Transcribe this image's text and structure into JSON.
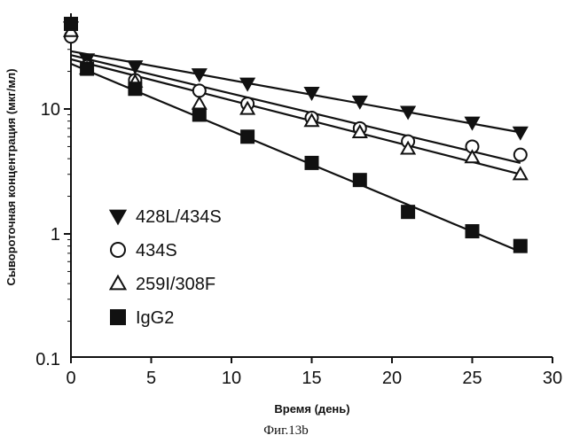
{
  "caption": "Фиг.13b",
  "chart_data": {
    "type": "scatter",
    "xlabel": "Время  (день)",
    "ylabel": "Сывороточная концентрация (мкг/мл)",
    "xlim": [
      0,
      30
    ],
    "ylim": [
      0.1,
      50
    ],
    "yscale": "log",
    "xticks": [
      0,
      5,
      10,
      15,
      20,
      25,
      30
    ],
    "yticks": [
      {
        "value": 0.1,
        "label": "0.1"
      },
      {
        "value": 1,
        "label": "1"
      },
      {
        "value": 10,
        "label": "10"
      }
    ],
    "grid": false,
    "legend_position": "bottom-left",
    "series": [
      {
        "name": "428L/434S",
        "marker": "triangle-down",
        "filled": true,
        "points": [
          [
            0,
            45
          ],
          [
            1,
            25
          ],
          [
            4,
            22
          ],
          [
            8,
            19
          ],
          [
            11,
            16
          ],
          [
            15,
            13.5
          ],
          [
            18,
            11.5
          ],
          [
            21,
            9.5
          ],
          [
            25,
            7.8
          ],
          [
            28,
            6.5
          ]
        ],
        "fit": [
          [
            0,
            29
          ],
          [
            28,
            6.5
          ]
        ]
      },
      {
        "name": "434S",
        "marker": "circle",
        "filled": false,
        "points": [
          [
            0,
            38
          ],
          [
            1,
            22
          ],
          [
            4,
            17
          ],
          [
            8,
            14
          ],
          [
            11,
            11
          ],
          [
            15,
            8.5
          ],
          [
            18,
            7
          ],
          [
            21,
            5.5
          ],
          [
            25,
            5
          ],
          [
            28,
            4.3
          ]
        ],
        "fit": [
          [
            0,
            27
          ],
          [
            28,
            3.7
          ]
        ]
      },
      {
        "name": "259I/308F",
        "marker": "triangle-up",
        "filled": false,
        "points": [
          [
            0,
            42
          ],
          [
            1,
            21
          ],
          [
            4,
            16.5
          ],
          [
            8,
            11
          ],
          [
            11,
            10
          ],
          [
            15,
            8
          ],
          [
            18,
            6.5
          ],
          [
            21,
            4.8
          ],
          [
            25,
            4.1
          ],
          [
            28,
            3
          ]
        ],
        "fit": [
          [
            0,
            25
          ],
          [
            28,
            3
          ]
        ]
      },
      {
        "name": "IgG2",
        "marker": "square",
        "filled": true,
        "points": [
          [
            0,
            48
          ],
          [
            1,
            21
          ],
          [
            4,
            14.5
          ],
          [
            8,
            9
          ],
          [
            11,
            6
          ],
          [
            15,
            3.7
          ],
          [
            18,
            2.7
          ],
          [
            21,
            1.5
          ],
          [
            25,
            1.05
          ],
          [
            28,
            0.8
          ]
        ],
        "fit": [
          [
            0,
            23
          ],
          [
            28,
            0.72
          ]
        ]
      }
    ]
  }
}
